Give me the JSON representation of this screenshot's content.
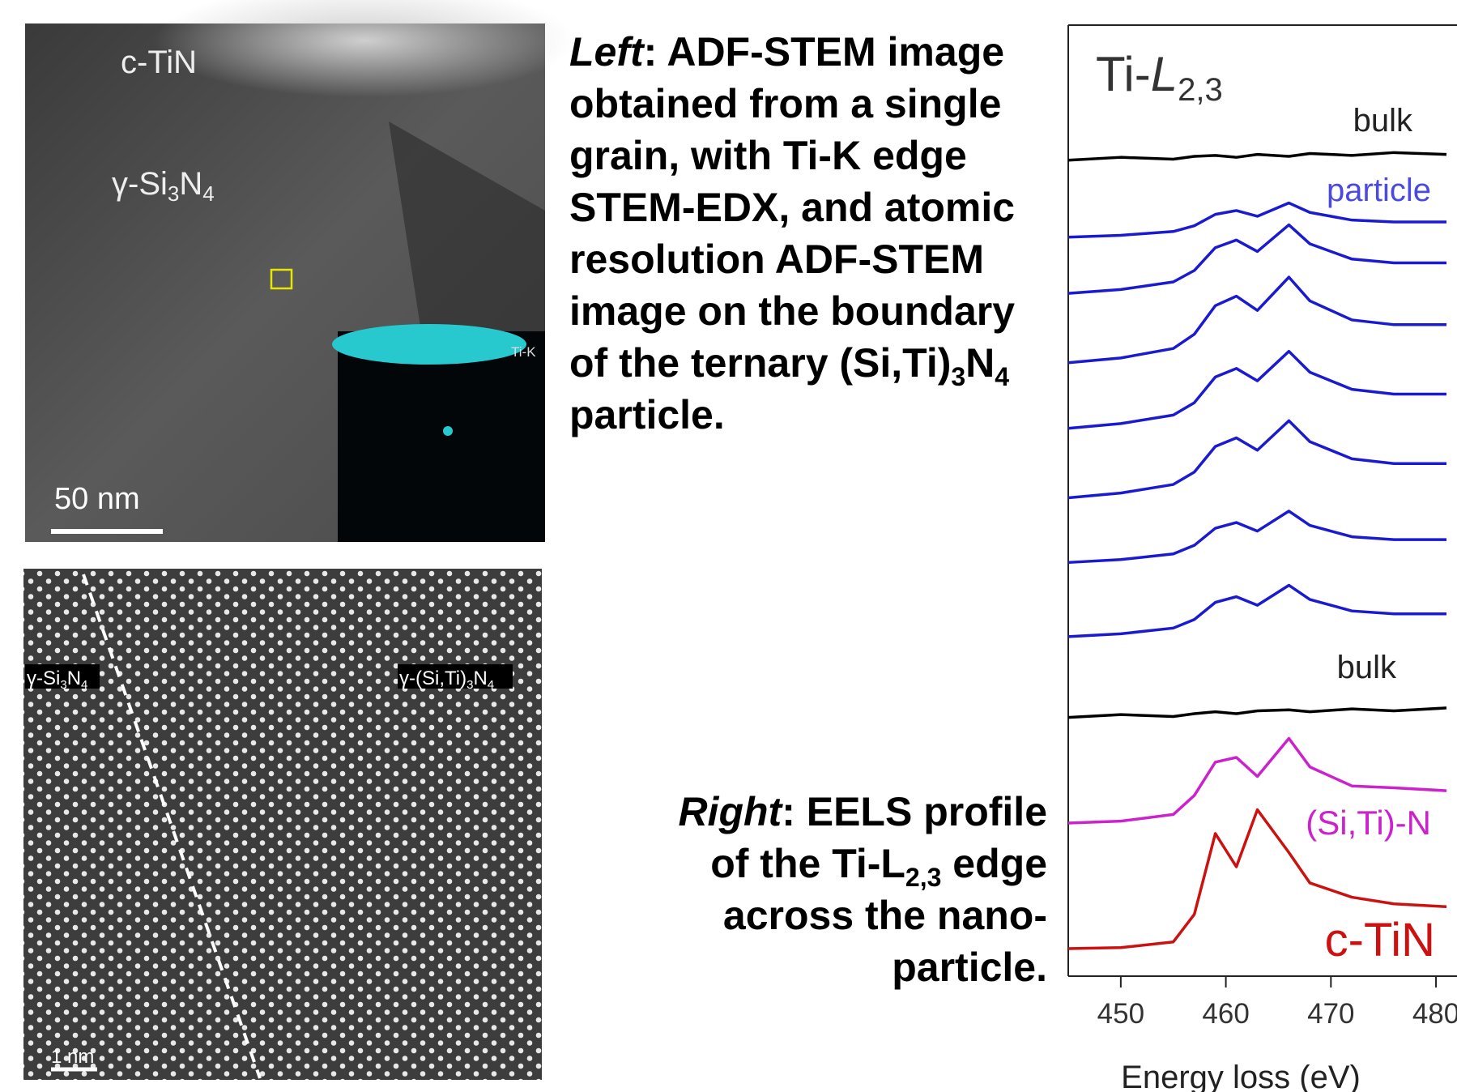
{
  "stem_image": {
    "label_tin": "c-TiN",
    "label_matrix": [
      "γ-Si",
      "3",
      "N",
      "4"
    ],
    "scale_bar": "50 nm",
    "inset_label": "Ti-K"
  },
  "atomic_image": {
    "label_left": [
      "γ-Si",
      "3",
      "N",
      "4"
    ],
    "label_right": [
      "γ-(Si,Ti)",
      "3",
      "N",
      "4"
    ],
    "scale_bar": "1 nm"
  },
  "left_caption": [
    "Left",
    ": ADF-STEM image obtained from a single grain, with Ti-K edge STEM-EDX, and atomic resolution ADF-STEM image on the boundary of the ternary (Si,Ti)",
    "3",
    "N",
    "4",
    " particle."
  ],
  "right_caption": [
    "Right",
    ": EELS profile of the Ti-L",
    "2,3",
    " edge across the nano-particle."
  ],
  "chart_data": {
    "type": "line",
    "title": {
      "main": "Ti-",
      "symbol": "L",
      "subscript": "2,3"
    },
    "x_label": "Energy loss (eV)",
    "x": [
      445,
      450,
      455,
      457,
      459,
      461,
      463,
      466,
      468,
      472,
      476,
      481
    ],
    "xlim": [
      445,
      482
    ],
    "xticks": [
      450,
      460,
      470,
      480
    ],
    "ylim": [
      0,
      100
    ],
    "series": [
      {
        "name": "bulk",
        "color": "#000000",
        "values": [
          85.8,
          86.1,
          85.9,
          86.2,
          86.3,
          86.1,
          86.4,
          86.2,
          86.5,
          86.3,
          86.6,
          86.4
        ]
      },
      {
        "name": "particle",
        "color": "#1a1ad0",
        "values": [
          77.7,
          77.9,
          78.3,
          78.9,
          80.1,
          80.5,
          79.9,
          81.3,
          80.3,
          79.5,
          79.3,
          79.3
        ]
      },
      {
        "color": "#1a1ad0",
        "values": [
          71.8,
          72.2,
          73.0,
          74.2,
          76.6,
          77.4,
          76.2,
          79.0,
          77.0,
          75.4,
          75.0,
          75.0
        ]
      },
      {
        "color": "#1a1ad0",
        "values": [
          64.5,
          65.0,
          66.0,
          67.5,
          70.5,
          71.5,
          70.0,
          73.5,
          71.0,
          69.0,
          68.5,
          68.5
        ]
      },
      {
        "color": "#1a1ad0",
        "values": [
          57.6,
          58.1,
          59.0,
          60.3,
          63.0,
          63.9,
          62.6,
          65.7,
          63.5,
          61.7,
          61.2,
          61.2
        ]
      },
      {
        "color": "#1a1ad0",
        "values": [
          50.3,
          50.8,
          51.7,
          53.0,
          55.7,
          56.6,
          55.3,
          58.4,
          56.2,
          54.4,
          53.9,
          53.9
        ]
      },
      {
        "color": "#1a1ad0",
        "values": [
          43.5,
          43.8,
          44.4,
          45.3,
          47.1,
          47.7,
          46.8,
          48.9,
          47.4,
          46.2,
          45.9,
          45.9
        ]
      },
      {
        "color": "#1a1ad0",
        "values": [
          35.7,
          36.0,
          36.6,
          37.5,
          39.3,
          39.9,
          39.0,
          41.1,
          39.6,
          38.4,
          38.1,
          38.1
        ]
      },
      {
        "name": "bulk",
        "color": "#000000",
        "values": [
          27.2,
          27.5,
          27.3,
          27.6,
          27.8,
          27.6,
          27.9,
          28.0,
          27.8,
          28.1,
          27.9,
          28.2
        ]
      },
      {
        "name": "(Si,Ti)-N",
        "color": "#cc22cc",
        "values": [
          16.1,
          16.3,
          17.0,
          19.0,
          22.5,
          23.0,
          21.0,
          25.0,
          22.0,
          20.0,
          19.8,
          19.5
        ]
      },
      {
        "name": "c-TiN",
        "color": "#cc1111",
        "values": [
          2.9,
          3.0,
          3.6,
          6.5,
          15.0,
          11.5,
          17.5,
          13.0,
          9.8,
          8.3,
          7.6,
          7.3
        ]
      }
    ]
  }
}
